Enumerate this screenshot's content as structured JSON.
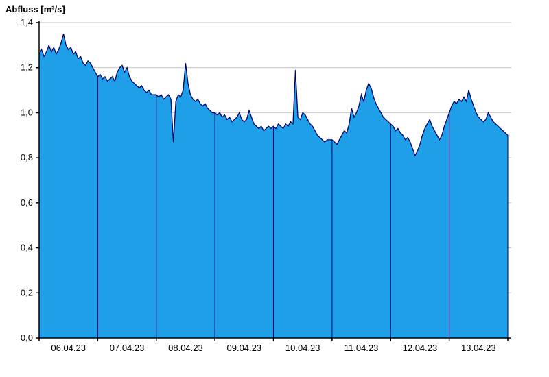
{
  "chart_data": {
    "type": "area",
    "title": "Abfluss [m³/s]",
    "ylabel": "Abfluss [m³/s]",
    "xlabel": "",
    "ylim": [
      0,
      1.4
    ],
    "ytick_step": 0.2,
    "ytick_labels": [
      "0,0",
      "0,2",
      "0,4",
      "0,6",
      "0,8",
      "1,0",
      "1,2",
      "1,4"
    ],
    "categories": [
      "06.04.23",
      "07.04.23",
      "08.04.23",
      "09.04.23",
      "10.04.23",
      "11.04.23",
      "12.04.23",
      "13.04.23"
    ],
    "points_per_day": 24,
    "grid": "horizontal",
    "legend": "none",
    "series": [
      {
        "name": "Abfluss",
        "values": [
          1.26,
          1.28,
          1.25,
          1.27,
          1.3,
          1.27,
          1.29,
          1.26,
          1.28,
          1.31,
          1.35,
          1.3,
          1.28,
          1.29,
          1.26,
          1.27,
          1.24,
          1.25,
          1.22,
          1.21,
          1.23,
          1.22,
          1.2,
          1.18,
          1.16,
          1.17,
          1.15,
          1.16,
          1.14,
          1.15,
          1.16,
          1.14,
          1.18,
          1.2,
          1.21,
          1.18,
          1.2,
          1.16,
          1.14,
          1.13,
          1.12,
          1.11,
          1.12,
          1.1,
          1.09,
          1.1,
          1.08,
          1.08,
          1.08,
          1.07,
          1.08,
          1.06,
          1.07,
          1.08,
          1.06,
          0.87,
          1.05,
          1.08,
          1.07,
          1.1,
          1.22,
          1.13,
          1.08,
          1.06,
          1.05,
          1.06,
          1.04,
          1.03,
          1.04,
          1.02,
          1.01,
          1.0,
          1.0,
          0.99,
          1.0,
          0.98,
          0.99,
          0.97,
          0.98,
          0.96,
          0.97,
          0.98,
          1.0,
          0.97,
          0.96,
          0.97,
          1.01,
          0.98,
          0.95,
          0.94,
          0.93,
          0.94,
          0.92,
          0.93,
          0.94,
          0.93,
          0.94,
          0.93,
          0.95,
          0.94,
          0.93,
          0.95,
          0.94,
          0.96,
          0.95,
          1.19,
          0.98,
          0.97,
          1.0,
          0.99,
          0.97,
          0.95,
          0.94,
          0.92,
          0.9,
          0.89,
          0.88,
          0.87,
          0.88,
          0.88,
          0.88,
          0.87,
          0.86,
          0.88,
          0.9,
          0.92,
          0.91,
          0.95,
          1.02,
          0.98,
          1.0,
          1.03,
          1.08,
          1.05,
          1.1,
          1.13,
          1.11,
          1.07,
          1.04,
          1.02,
          1.0,
          0.98,
          0.97,
          0.96,
          0.95,
          0.94,
          0.92,
          0.93,
          0.91,
          0.9,
          0.88,
          0.89,
          0.87,
          0.84,
          0.81,
          0.83,
          0.86,
          0.9,
          0.93,
          0.95,
          0.97,
          0.94,
          0.92,
          0.9,
          0.88,
          0.9,
          0.94,
          0.97,
          1.0,
          1.03,
          1.05,
          1.04,
          1.06,
          1.05,
          1.07,
          1.05,
          1.1,
          1.06,
          1.03,
          1.0,
          0.98,
          0.97,
          0.96,
          0.97,
          1.0,
          0.98,
          0.96,
          0.95,
          0.94,
          0.93,
          0.92,
          0.91,
          0.9
        ]
      }
    ],
    "colors": {
      "fill": "#1e9fe8",
      "line": "#000066",
      "day_separator": "#000066",
      "grid": "#c6c6c6",
      "axis": "#000000",
      "background": "#ffffff"
    }
  }
}
